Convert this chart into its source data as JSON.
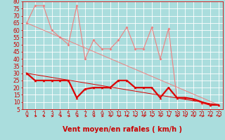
{
  "xlabel": "Vent moyen/en rafales ( km/h )",
  "background_color": "#aadddd",
  "grid_color": "#ffffff",
  "xlim": [
    -0.5,
    23.5
  ],
  "ylim": [
    5,
    80
  ],
  "yticks": [
    5,
    10,
    15,
    20,
    25,
    30,
    35,
    40,
    45,
    50,
    55,
    60,
    65,
    70,
    75,
    80
  ],
  "xticks": [
    0,
    1,
    2,
    3,
    4,
    5,
    6,
    7,
    8,
    9,
    10,
    11,
    12,
    13,
    14,
    15,
    16,
    17,
    18,
    19,
    20,
    21,
    22,
    23
  ],
  "x": [
    0,
    1,
    2,
    3,
    4,
    5,
    6,
    7,
    8,
    9,
    10,
    11,
    12,
    13,
    14,
    15,
    16,
    17,
    18,
    19,
    20,
    21,
    22,
    23
  ],
  "line_rafales": [
    65,
    77,
    77,
    60,
    55,
    50,
    77,
    40,
    53,
    47,
    47,
    53,
    62,
    47,
    47,
    62,
    40,
    61,
    13,
    13,
    12,
    9,
    8,
    8
  ],
  "line_moyen": [
    30,
    25,
    25,
    25,
    25,
    25,
    13,
    19,
    20,
    20,
    20,
    25,
    25,
    20,
    20,
    20,
    13,
    20,
    13,
    13,
    12,
    10,
    8,
    8
  ],
  "trend_rafales": [
    65,
    8
  ],
  "trend_moyen": [
    30,
    8
  ],
  "color_rafales": "#f08080",
  "color_moyen": "#dd0000",
  "xlabel_color": "#cc0000",
  "tick_color": "#cc0000",
  "xlabel_fontsize": 7,
  "tick_fontsize": 5.5,
  "linewidth_rafales": 0.8,
  "linewidth_moyen": 1.6,
  "markersize_rafales": 2,
  "markersize_moyen": 2.5,
  "trend_lw": 0.7
}
